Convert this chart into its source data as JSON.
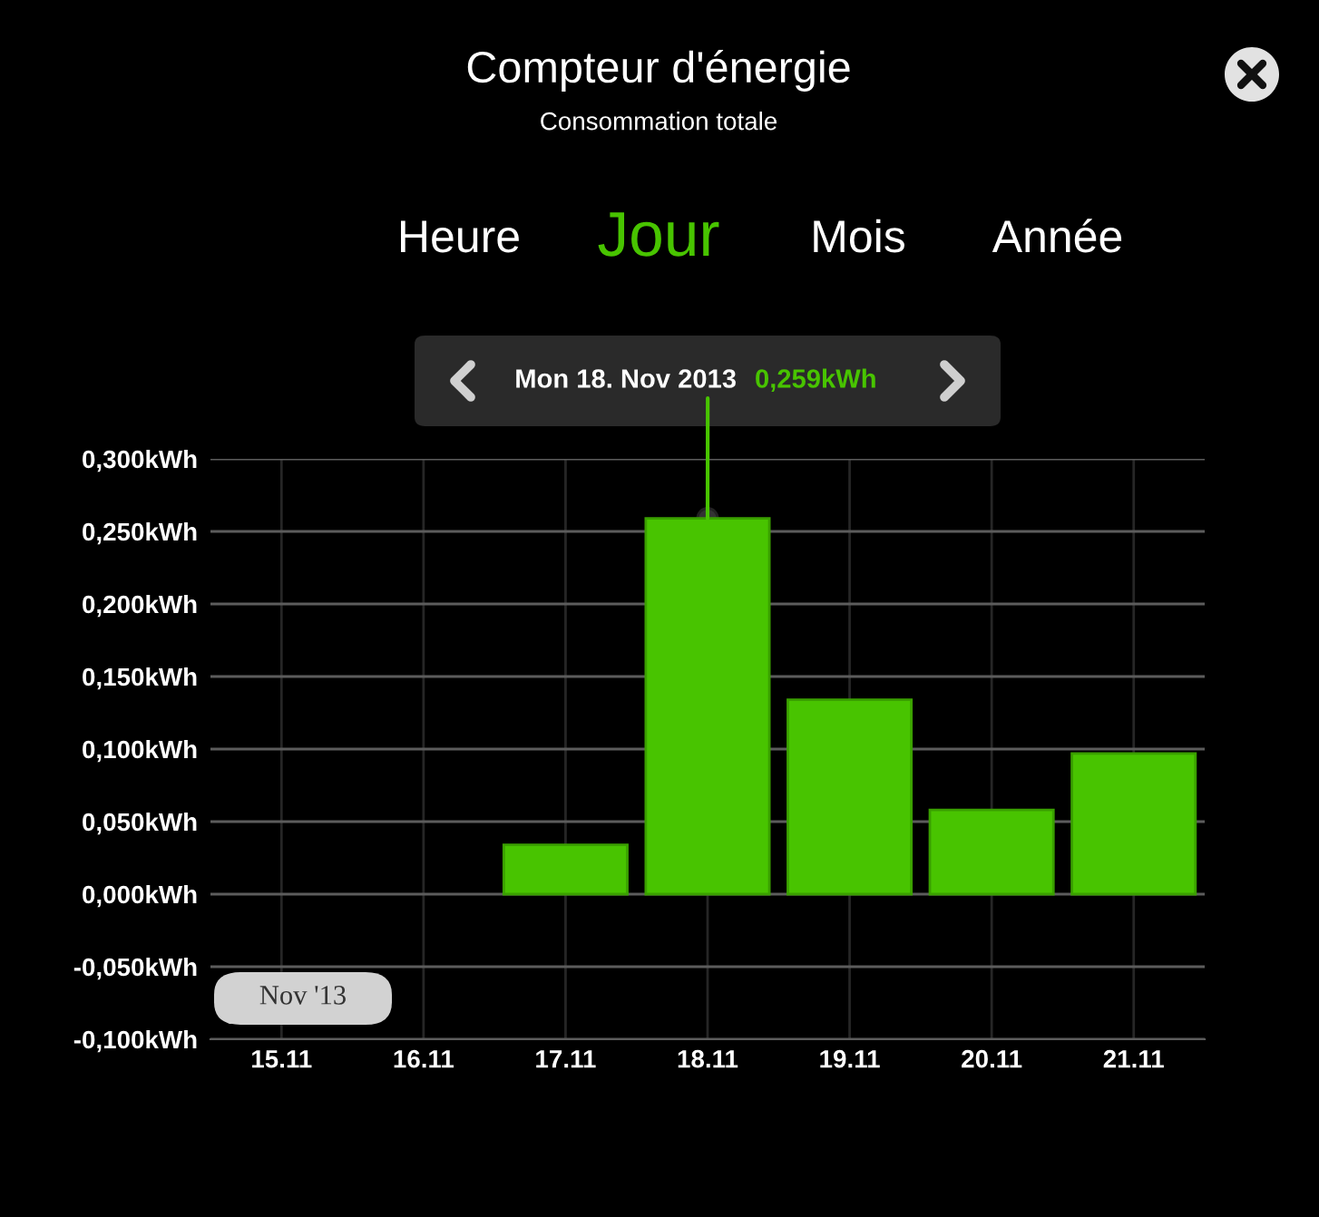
{
  "chart_data": {
    "type": "bar",
    "title": "Compteur d'énergie",
    "subtitle": "Consommation totale",
    "categories": [
      "15.11",
      "16.11",
      "17.11",
      "18.11",
      "19.11",
      "20.11",
      "21.11"
    ],
    "values": [
      null,
      null,
      0.034,
      0.259,
      0.134,
      0.058,
      0.097
    ],
    "color": "#48c400",
    "ylim": [
      -0.1,
      0.3
    ],
    "yticks": [
      {
        "value": -0.1,
        "label": "-0,100kWh"
      },
      {
        "value": -0.05,
        "label": "-0,050kWh"
      },
      {
        "value": 0,
        "label": "0,000kWh"
      },
      {
        "value": 0.05,
        "label": "0,050kWh"
      },
      {
        "value": 0.1,
        "label": "0,100kWh"
      },
      {
        "value": 0.15,
        "label": "0,150kWh"
      },
      {
        "value": 0.2,
        "label": "0,200kWh"
      },
      {
        "value": 0.25,
        "label": "0,250kWh"
      },
      {
        "value": 0.3,
        "label": "0,300kWh"
      }
    ],
    "grid": true,
    "annotations": [
      "Heure",
      "Jour",
      "Mois",
      "Année",
      "Nov '13",
      {
        "text": "Mon 18. Nov 2013",
        "x": "18.11",
        "y": 0.259
      },
      "0,259kWh"
    ]
  }
}
